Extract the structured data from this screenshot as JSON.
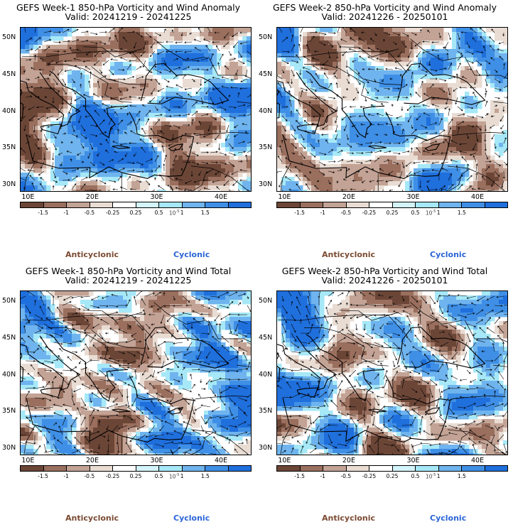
{
  "palette": [
    "#6b4637",
    "#9a6f5e",
    "#c3a395",
    "#e9dcd3",
    "#ffffff",
    "#d4f4fb",
    "#a6e8f7",
    "#6fb4ee",
    "#3f8fe6",
    "#1f6fdc"
  ],
  "panels": [
    {
      "id": "w1-anom",
      "title": "GEFS Week-1 850-hPa Vorticity and Wind Anomaly",
      "valid": "Valid: 20241219 - 20241225",
      "seed": 11,
      "mode": "anom"
    },
    {
      "id": "w2-anom",
      "title": "GEFS Week-2 850-hPa Vorticity and Wind Anomaly",
      "valid": "Valid: 20241226 - 20250101",
      "seed": 29,
      "mode": "anom"
    },
    {
      "id": "w1-total",
      "title": "GEFS Week-1 850-hPa Vorticity and Wind Total",
      "valid": "Valid: 20241219 - 20241225",
      "seed": 47,
      "mode": "total"
    },
    {
      "id": "w2-total",
      "title": "GEFS Week-2 850-hPa Vorticity and Wind Total",
      "valid": "Valid: 20241226 - 20250101",
      "seed": 73,
      "mode": "total"
    }
  ],
  "lat_labels": [
    "50N",
    "45N",
    "40N",
    "35N",
    "30N"
  ],
  "lon_labels": [
    "10E",
    "20E",
    "30E",
    "40E"
  ],
  "colorbar_ticks": [
    "-1.5",
    "-1",
    "-0.5",
    "-0.25",
    "0.25",
    "0.5",
    "1",
    "1.5"
  ],
  "colorbar_unit": "10",
  "colorbar_exp": "-5",
  "legend": {
    "anticyclonic": "Anticyclonic",
    "cyclonic": "Cyclonic"
  }
}
